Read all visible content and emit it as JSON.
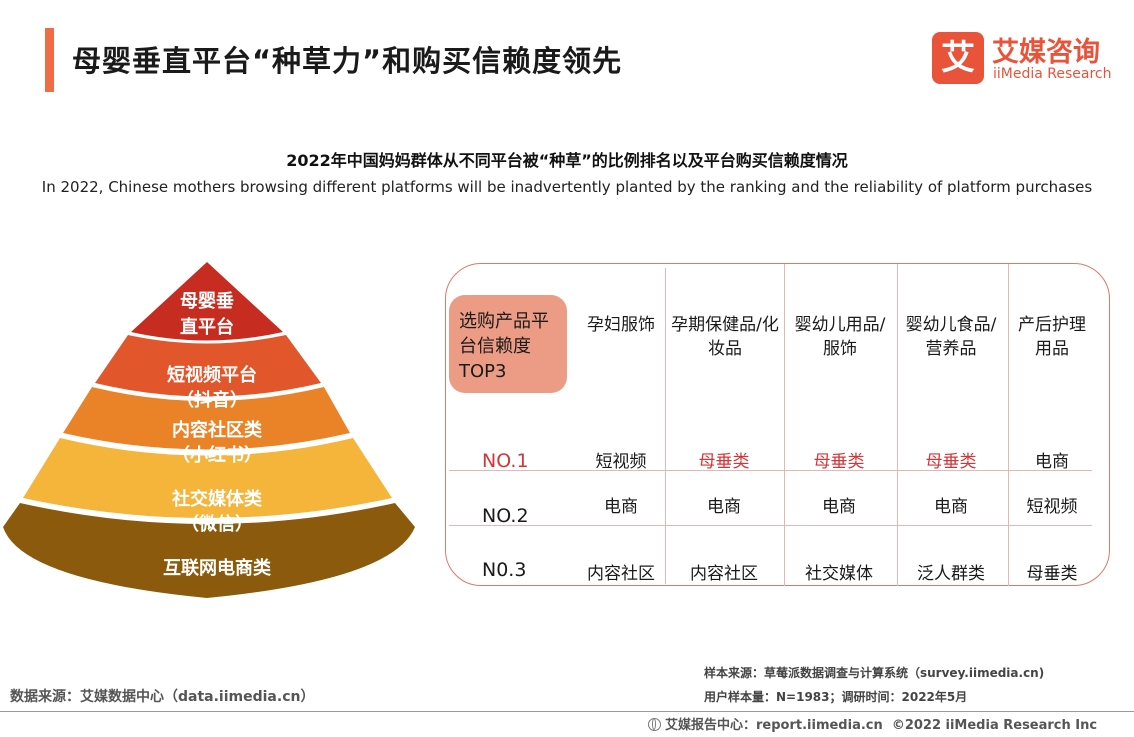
{
  "header": {
    "title": "母婴垂直平台“种草力”和购买信赖度领先",
    "accent_color": "#f06c47"
  },
  "logo": {
    "glyph": "艾",
    "name_cn": "艾媒咨询",
    "name_en": "iiMedia Research",
    "color": "#e9533a"
  },
  "subtitle": {
    "cn": "2022年中国妈妈群体从不同平台被“种草”的比例排名以及平台购买信赖度情况",
    "en": "In 2022, Chinese mothers browsing different platforms will be inadvertently planted by the ranking and the reliability of platform purchases"
  },
  "pyramid": {
    "levels": [
      {
        "lines": [
          "母婴垂",
          "直平台"
        ],
        "color": "#c62c1f"
      },
      {
        "lines": [
          "短视频平台",
          "（抖音）"
        ],
        "color": "#e2562b"
      },
      {
        "lines": [
          "内容社区类",
          "（小红书）"
        ],
        "color": "#ea8227"
      },
      {
        "lines": [
          "社交媒体类",
          "（微信）"
        ],
        "color": "#f5b43a"
      },
      {
        "lines": [
          "互联网电商类"
        ],
        "color": "#8b5a0c"
      }
    ]
  },
  "table": {
    "corner_label": "选购产品平台信赖度TOP3",
    "corner_color": "#ec9c84",
    "border_color": "#d97a6e",
    "highlight_color": "#d2363a",
    "columns": [
      "孕妇服饰",
      "孕期保健品/化妆品",
      "婴幼儿用品/服饰",
      "婴幼儿食品/营养品",
      "产后护理用品"
    ],
    "rows": [
      {
        "label": "NO.1",
        "cells": [
          "短视频",
          "母垂类",
          "母垂类",
          "母垂类",
          "电商"
        ],
        "highlight": [
          false,
          true,
          true,
          true,
          false
        ]
      },
      {
        "label": "NO.2",
        "cells": [
          "电商",
          "电商",
          "电商",
          "电商",
          "短视频"
        ],
        "highlight": [
          false,
          false,
          false,
          false,
          false
        ]
      },
      {
        "label": "N0.3",
        "cells": [
          "内容社区",
          "内容社区",
          "社交媒体",
          "泛人群类",
          "母垂类"
        ],
        "highlight": [
          false,
          false,
          false,
          false,
          false
        ]
      }
    ]
  },
  "footer": {
    "source": "数据来源：艾媒数据中心（data.iimedia.cn）",
    "sample_source": "样本来源：草莓派数据调查与计算系统（survey.iimedia.cn)",
    "sample_size": "用户样本量：N=1983；调研时间：2022年5月",
    "report": "艾媒报告中心：report.iimedia.cn",
    "copyright": "©2022  iiMedia Research  Inc"
  }
}
